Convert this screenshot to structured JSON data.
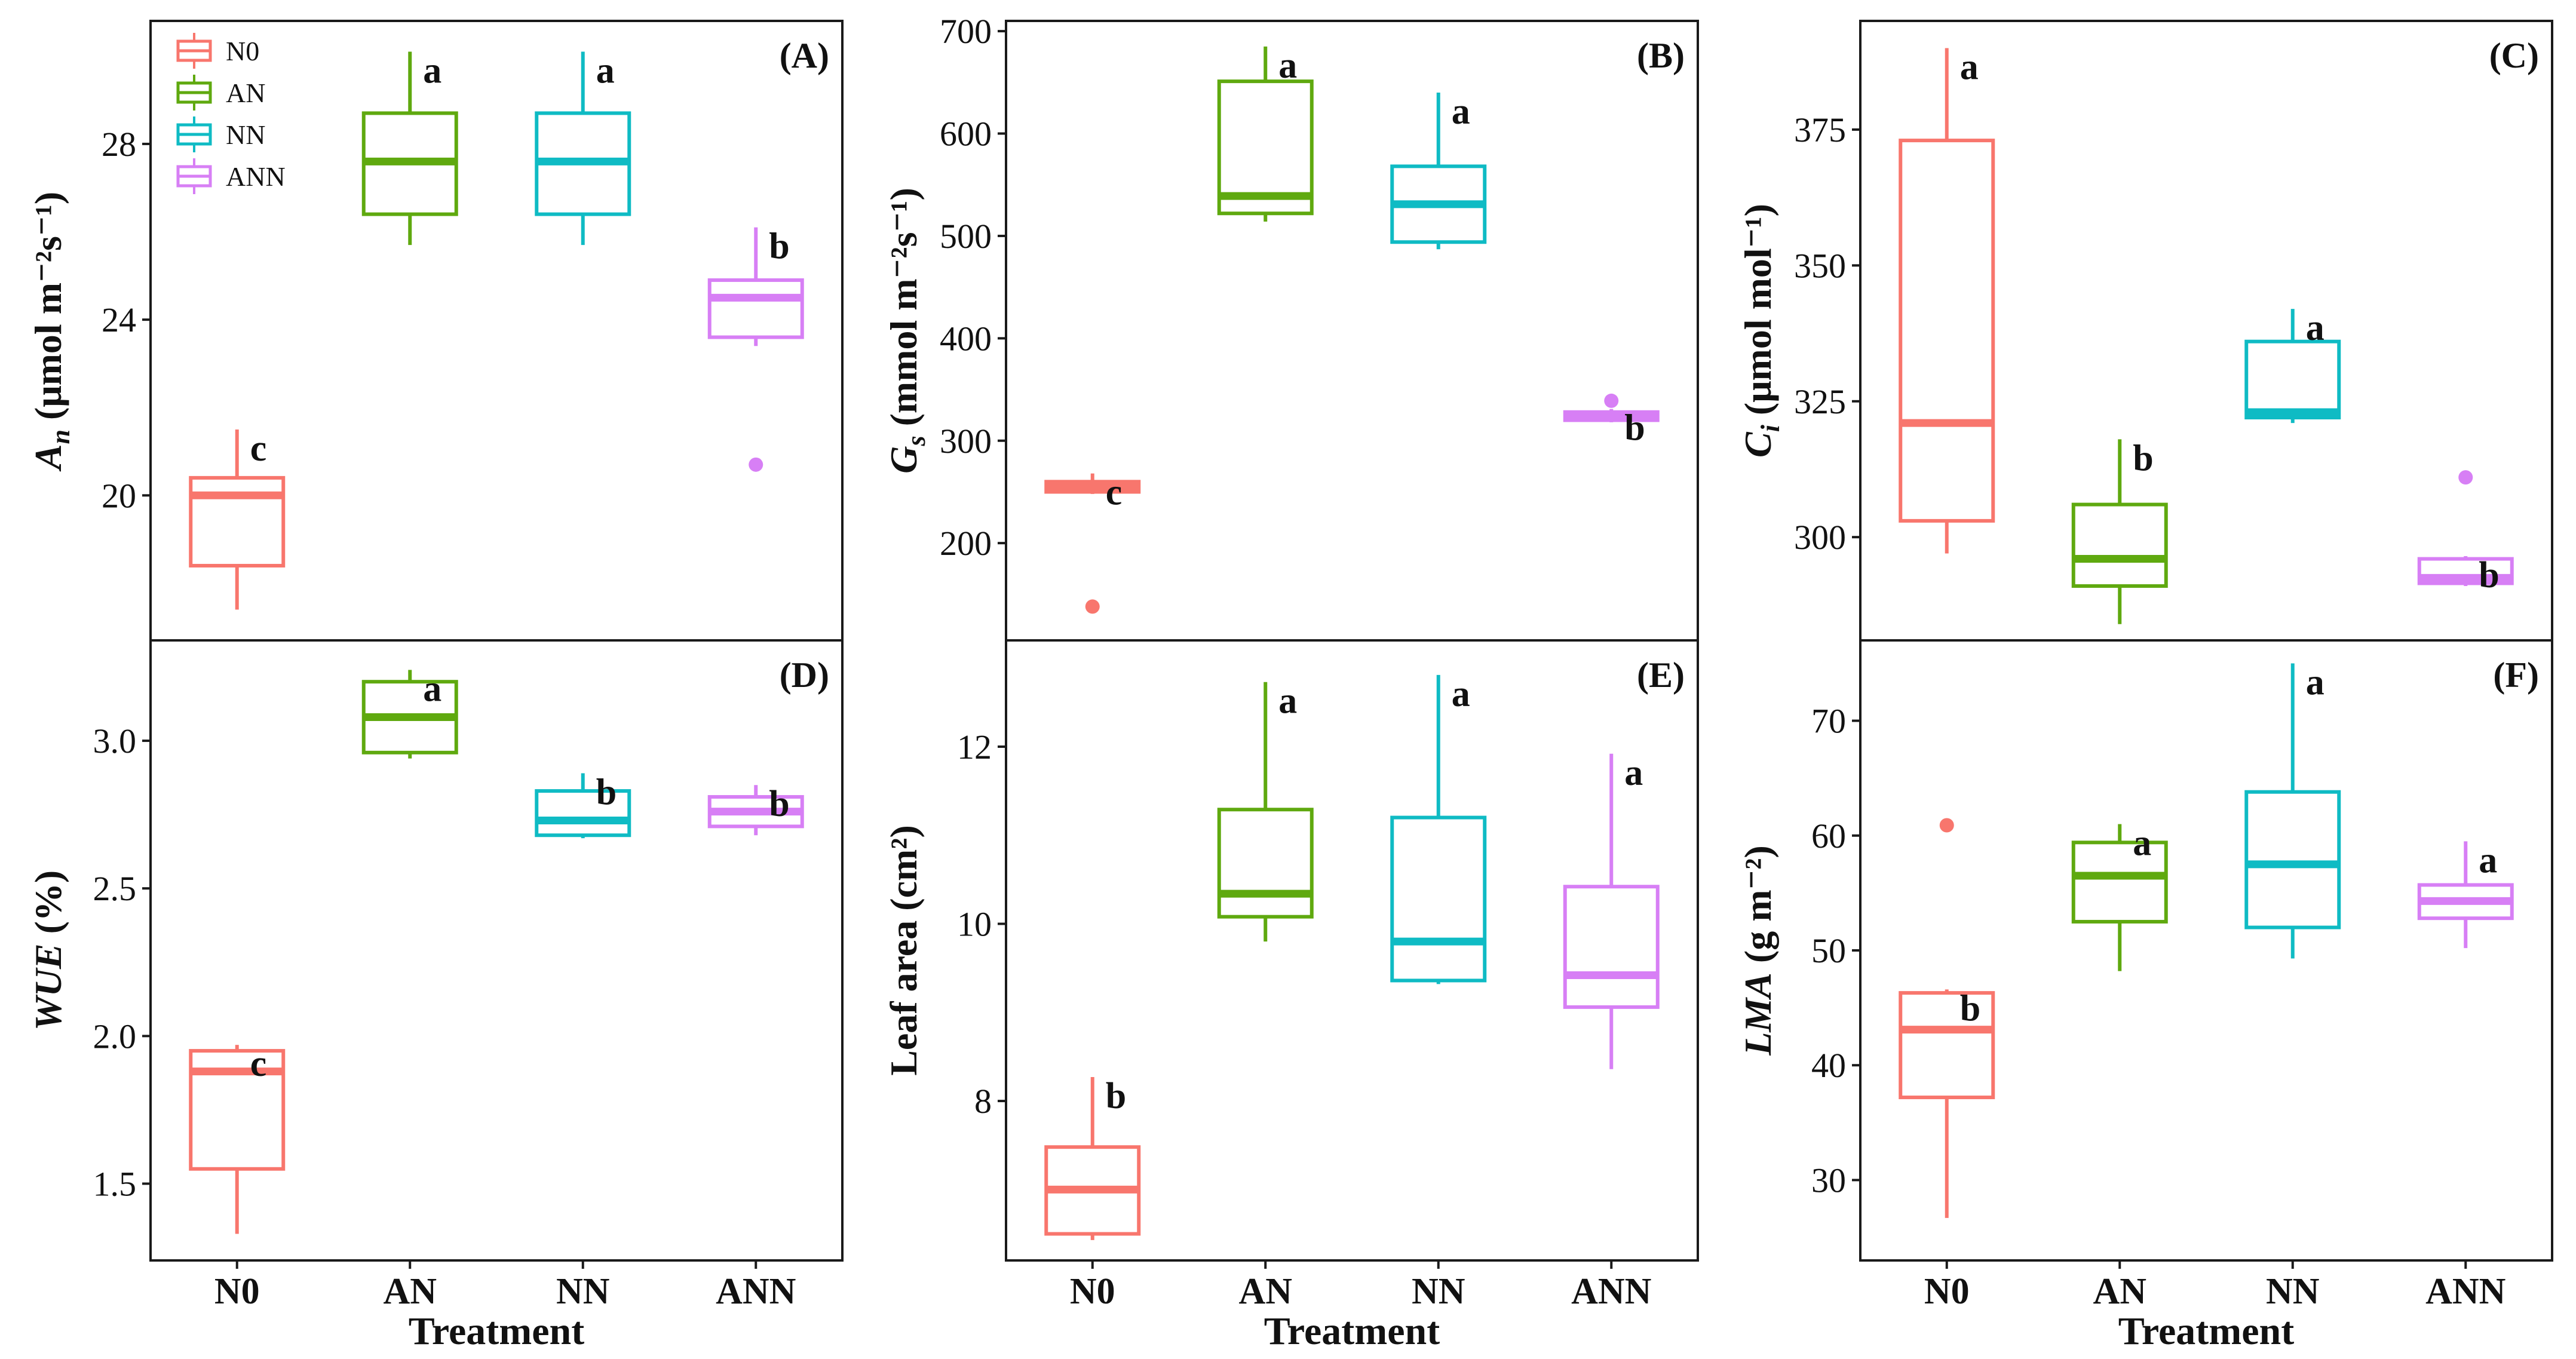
{
  "colors": {
    "N0": "#F8766D",
    "AN": "#5FA90F",
    "NN": "#0FBBC4",
    "ANN": "#D77FF5"
  },
  "treatments": [
    "N0",
    "AN",
    "NN",
    "ANN"
  ],
  "legend": [
    "N0",
    "AN",
    "NN",
    "ANN"
  ],
  "xlabel": "Treatment",
  "chart_data": [
    {
      "type": "box",
      "panel": "A",
      "tag": "(A)",
      "ylabel": {
        "main": "A",
        "sub": "n",
        "rest": " (μmol m⁻²s⁻¹)"
      },
      "ylim": [
        16.7,
        30.8
      ],
      "yticks": [
        "20",
        "24",
        "28"
      ],
      "ytick_values": [
        20,
        24,
        28
      ],
      "boxes": [
        {
          "treatment": "N0",
          "whisker_low": 17.4,
          "q1": 18.4,
          "median": 20.0,
          "q3": 20.4,
          "whisker_high": 21.5,
          "outliers": [],
          "letter": "c"
        },
        {
          "treatment": "AN",
          "whisker_low": 25.7,
          "q1": 26.4,
          "median": 27.6,
          "q3": 28.7,
          "whisker_high": 30.1,
          "outliers": [],
          "letter": "a"
        },
        {
          "treatment": "NN",
          "whisker_low": 25.7,
          "q1": 26.4,
          "median": 27.6,
          "q3": 28.7,
          "whisker_high": 30.1,
          "outliers": [],
          "letter": "a"
        },
        {
          "treatment": "ANN",
          "whisker_low": 23.4,
          "q1": 23.6,
          "median": 24.5,
          "q3": 24.9,
          "whisker_high": 26.1,
          "outliers": [
            20.7
          ],
          "letter": "b"
        }
      ]
    },
    {
      "type": "box",
      "panel": "B",
      "tag": "(B)",
      "ylabel": {
        "main": "G",
        "sub": "s",
        "rest": " (mmol m⁻²s⁻¹)"
      },
      "ylim": [
        105,
        710
      ],
      "yticks": [
        "200",
        "300",
        "400",
        "500",
        "600",
        "700"
      ],
      "ytick_values": [
        200,
        300,
        400,
        500,
        600,
        700
      ],
      "boxes": [
        {
          "treatment": "N0",
          "whisker_low": 248,
          "q1": 250,
          "median": 255,
          "q3": 260,
          "whisker_high": 268,
          "outliers": [
            138
          ],
          "letter": "c"
        },
        {
          "treatment": "AN",
          "whisker_low": 514,
          "q1": 522,
          "median": 539,
          "q3": 651,
          "whisker_high": 685,
          "outliers": [],
          "letter": "a"
        },
        {
          "treatment": "NN",
          "whisker_low": 487,
          "q1": 494,
          "median": 531,
          "q3": 568,
          "whisker_high": 640,
          "outliers": [],
          "letter": "a"
        },
        {
          "treatment": "ANN",
          "whisker_low": 318,
          "q1": 320,
          "median": 324,
          "q3": 328,
          "whisker_high": 331,
          "outliers": [
            339
          ],
          "letter": "b"
        }
      ]
    },
    {
      "type": "box",
      "panel": "C",
      "tag": "(C)",
      "ylabel": {
        "main": "C",
        "sub": "i",
        "rest": " (μmol mol⁻¹)"
      },
      "ylim": [
        281,
        395
      ],
      "yticks": [
        "300",
        "325",
        "350",
        "375"
      ],
      "ytick_values": [
        300,
        325,
        350,
        375
      ],
      "boxes": [
        {
          "treatment": "N0",
          "whisker_low": 297,
          "q1": 303,
          "median": 321,
          "q3": 373,
          "whisker_high": 390,
          "outliers": [],
          "letter": "a"
        },
        {
          "treatment": "AN",
          "whisker_low": 284,
          "q1": 291,
          "median": 296,
          "q3": 306,
          "whisker_high": 318,
          "outliers": [],
          "letter": "b"
        },
        {
          "treatment": "NN",
          "whisker_low": 321,
          "q1": 322,
          "median": 323,
          "q3": 336,
          "whisker_high": 342,
          "outliers": [],
          "letter": "a"
        },
        {
          "treatment": "ANN",
          "whisker_low": 291,
          "q1": 291.5,
          "median": 292.5,
          "q3": 296,
          "whisker_high": 296.5,
          "outliers": [
            311
          ],
          "letter": "b"
        }
      ]
    },
    {
      "type": "box",
      "panel": "D",
      "tag": "(D)",
      "ylabel": {
        "main": "WUE",
        "sub": "",
        "rest": " (%)"
      },
      "ylim": [
        1.24,
        3.34
      ],
      "yticks": [
        "1.5",
        "2.0",
        "2.5",
        "3.0"
      ],
      "ytick_values": [
        1.5,
        2.0,
        2.5,
        3.0
      ],
      "boxes": [
        {
          "treatment": "N0",
          "whisker_low": 1.33,
          "q1": 1.55,
          "median": 1.88,
          "q3": 1.95,
          "whisker_high": 1.97,
          "outliers": [],
          "letter": "c"
        },
        {
          "treatment": "AN",
          "whisker_low": 2.94,
          "q1": 2.96,
          "median": 3.08,
          "q3": 3.2,
          "whisker_high": 3.24,
          "outliers": [],
          "letter": "a"
        },
        {
          "treatment": "NN",
          "whisker_low": 2.67,
          "q1": 2.68,
          "median": 2.73,
          "q3": 2.83,
          "whisker_high": 2.89,
          "outliers": [],
          "letter": "b"
        },
        {
          "treatment": "ANN",
          "whisker_low": 2.68,
          "q1": 2.71,
          "median": 2.76,
          "q3": 2.81,
          "whisker_high": 2.85,
          "outliers": [],
          "letter": "b"
        }
      ]
    },
    {
      "type": "box",
      "panel": "E",
      "tag": "(E)",
      "ylabel": {
        "main": "Leaf area (cm²)",
        "sub": "",
        "rest": ""
      },
      "ylim": [
        6.2,
        13.2
      ],
      "yticks": [
        "8",
        "10",
        "12"
      ],
      "ytick_values": [
        8,
        10,
        12
      ],
      "boxes": [
        {
          "treatment": "N0",
          "whisker_low": 6.43,
          "q1": 6.5,
          "median": 7.0,
          "q3": 7.48,
          "whisker_high": 8.27,
          "outliers": [],
          "letter": "b"
        },
        {
          "treatment": "AN",
          "whisker_low": 9.8,
          "q1": 10.08,
          "median": 10.34,
          "q3": 11.29,
          "whisker_high": 12.73,
          "outliers": [],
          "letter": "a"
        },
        {
          "treatment": "NN",
          "whisker_low": 9.32,
          "q1": 9.36,
          "median": 9.8,
          "q3": 11.2,
          "whisker_high": 12.81,
          "outliers": [],
          "letter": "a"
        },
        {
          "treatment": "ANN",
          "whisker_low": 8.36,
          "q1": 9.06,
          "median": 9.42,
          "q3": 10.42,
          "whisker_high": 11.92,
          "outliers": [],
          "letter": "a"
        }
      ]
    },
    {
      "type": "box",
      "panel": "F",
      "tag": "(F)",
      "ylabel": {
        "main": "LMA",
        "sub": "",
        "rest": " (g m⁻²)"
      },
      "ylim": [
        23,
        77
      ],
      "yticks": [
        "30",
        "40",
        "50",
        "60",
        "70"
      ],
      "ytick_values": [
        30,
        40,
        50,
        60,
        70
      ],
      "boxes": [
        {
          "treatment": "N0",
          "whisker_low": 26.7,
          "q1": 37.2,
          "median": 43.1,
          "q3": 46.3,
          "whisker_high": 46.6,
          "outliers": [
            60.9
          ],
          "letter": "b"
        },
        {
          "treatment": "AN",
          "whisker_low": 48.2,
          "q1": 52.5,
          "median": 56.5,
          "q3": 59.4,
          "whisker_high": 61.0,
          "outliers": [],
          "letter": "a"
        },
        {
          "treatment": "NN",
          "whisker_low": 49.3,
          "q1": 52.0,
          "median": 57.5,
          "q3": 63.8,
          "whisker_high": 75.0,
          "outliers": [],
          "letter": "a"
        },
        {
          "treatment": "ANN",
          "whisker_low": 50.2,
          "q1": 52.8,
          "median": 54.3,
          "q3": 55.7,
          "whisker_high": 59.5,
          "outliers": [],
          "letter": "a"
        }
      ]
    }
  ]
}
